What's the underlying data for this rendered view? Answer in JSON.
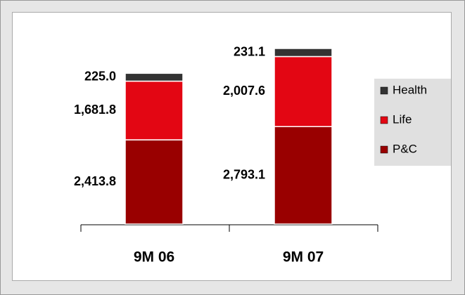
{
  "chart_data": {
    "type": "stacked_bar",
    "categories": [
      "9M 06",
      "9M 07"
    ],
    "series": [
      {
        "name": "P&C",
        "color": "#990000",
        "values": [
          2413.8,
          2793.1
        ],
        "value_labels": [
          "2,413.8",
          "2,793.1"
        ]
      },
      {
        "name": "Life",
        "color": "#e30613",
        "values": [
          1681.8,
          2007.6
        ],
        "value_labels": [
          "1,681.8",
          "2,007.6"
        ]
      },
      {
        "name": "Health",
        "color": "#333333",
        "values": [
          225.0,
          231.1
        ],
        "value_labels": [
          "225.0",
          "231.1"
        ]
      }
    ],
    "legend": "right"
  }
}
